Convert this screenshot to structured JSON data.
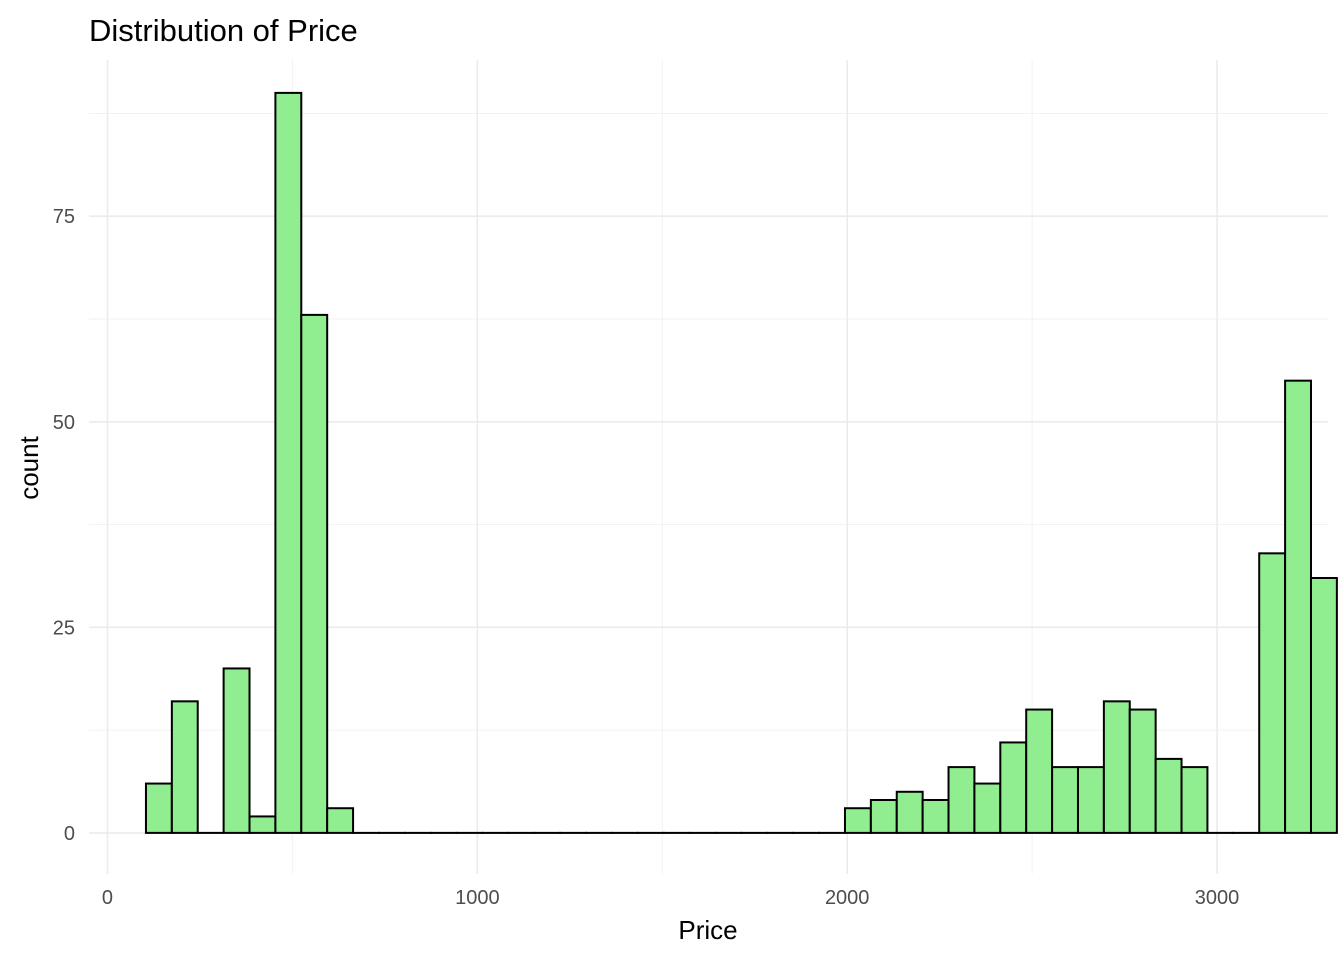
{
  "chart_data": {
    "type": "bar",
    "subtype": "histogram",
    "title": "Distribution of Price",
    "xlabel": "Price",
    "ylabel": "count",
    "xlim": [
      -50,
      3300
    ],
    "ylim": [
      -5,
      94
    ],
    "x_ticks": [
      0,
      1000,
      2000,
      3000
    ],
    "y_ticks": [
      0,
      25,
      50,
      75
    ],
    "x_tick_labels": [
      "0",
      "1000",
      "2000",
      "3000"
    ],
    "y_tick_labels": [
      "0",
      "25",
      "50",
      "75"
    ],
    "grid": true,
    "legend": "none",
    "bin_width": 70,
    "bin_start": 104,
    "values": [
      6,
      16,
      0,
      20,
      2,
      90,
      63,
      3,
      0,
      0,
      0,
      0,
      0,
      0,
      0,
      0,
      0,
      0,
      0,
      0,
      0,
      0,
      0,
      0,
      0,
      0,
      0,
      3,
      4,
      5,
      4,
      8,
      6,
      11,
      15,
      8,
      8,
      16,
      15,
      9,
      8,
      0,
      0,
      34,
      55,
      31
    ],
    "colors": {
      "fill": "#90ee90",
      "outline": "#000000"
    }
  }
}
